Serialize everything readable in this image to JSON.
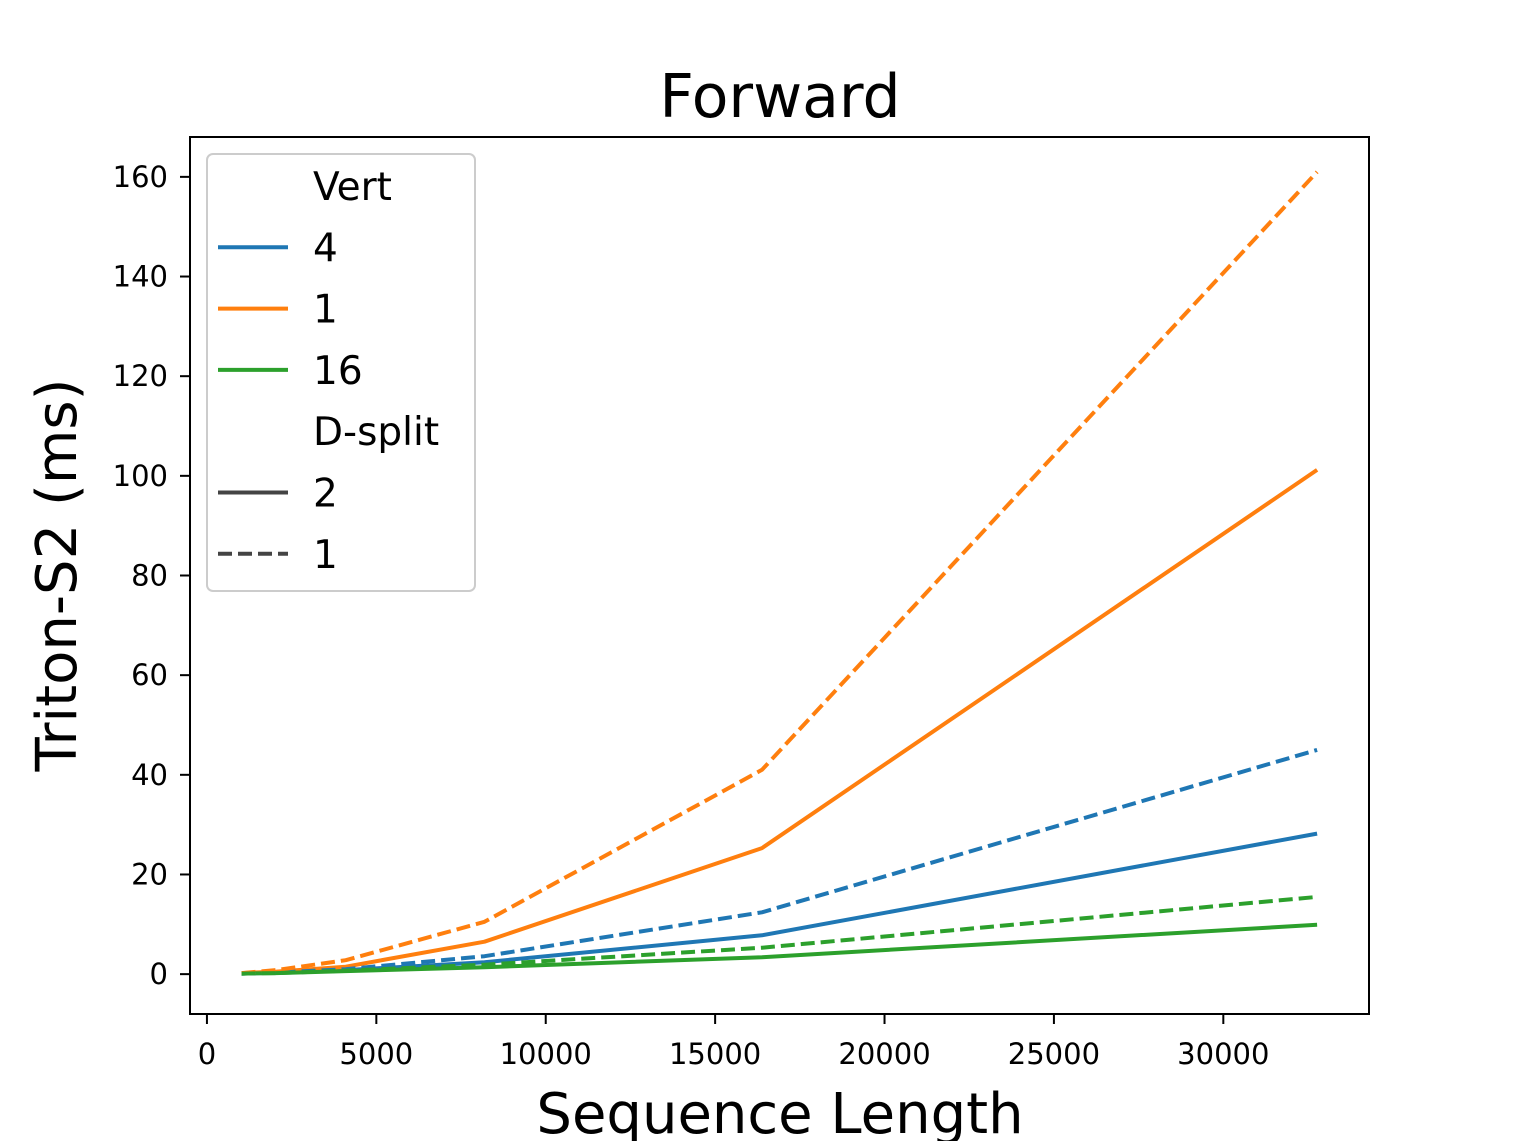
{
  "chart_data": {
    "type": "line",
    "title": "Forward",
    "xlabel": "Sequence Length",
    "ylabel": "Triton-S2 (ms)",
    "xlim": [
      -500,
      34300
    ],
    "ylim": [
      -8,
      168
    ],
    "xticks": [
      0,
      5000,
      10000,
      15000,
      20000,
      25000,
      30000
    ],
    "yticks": [
      0,
      20,
      40,
      60,
      80,
      100,
      120,
      140,
      160
    ],
    "grid": false,
    "legend_position": "top-left",
    "legend": {
      "groups": [
        {
          "title": "Vert",
          "entries": [
            {
              "label": "4",
              "color": "#1f77b4",
              "dash": "solid"
            },
            {
              "label": "1",
              "color": "#ff7f0e",
              "dash": "solid"
            },
            {
              "label": "16",
              "color": "#2ca02c",
              "dash": "solid"
            }
          ]
        },
        {
          "title": "D-split",
          "entries": [
            {
              "label": "2",
              "color": "#444444",
              "dash": "solid"
            },
            {
              "label": "1",
              "color": "#444444",
              "dash": "dashed"
            }
          ]
        }
      ]
    },
    "x": [
      1024,
      2048,
      4096,
      8192,
      16384,
      32768
    ],
    "series": [
      {
        "vert": "4",
        "dsplit": "2",
        "color": "#1f77b4",
        "dash": "solid",
        "values": [
          0.1,
          0.3,
          0.8,
          2.4,
          7.8,
          28.2
        ]
      },
      {
        "vert": "1",
        "dsplit": "2",
        "color": "#ff7f0e",
        "dash": "solid",
        "values": [
          0.2,
          0.5,
          1.5,
          6.5,
          25.3,
          101.2
        ]
      },
      {
        "vert": "16",
        "dsplit": "2",
        "color": "#2ca02c",
        "dash": "solid",
        "values": [
          0.1,
          0.2,
          0.6,
          1.4,
          3.4,
          9.9
        ]
      },
      {
        "vert": "4",
        "dsplit": "1",
        "color": "#1f77b4",
        "dash": "dashed",
        "values": [
          0.1,
          0.3,
          1.0,
          3.6,
          12.4,
          45.0
        ]
      },
      {
        "vert": "1",
        "dsplit": "1",
        "color": "#ff7f0e",
        "dash": "dashed",
        "values": [
          0.2,
          0.8,
          2.8,
          10.5,
          41.0,
          161.0
        ]
      },
      {
        "vert": "16",
        "dsplit": "1",
        "color": "#2ca02c",
        "dash": "dashed",
        "values": [
          0.1,
          0.2,
          0.7,
          1.9,
          5.3,
          15.5
        ]
      }
    ]
  }
}
